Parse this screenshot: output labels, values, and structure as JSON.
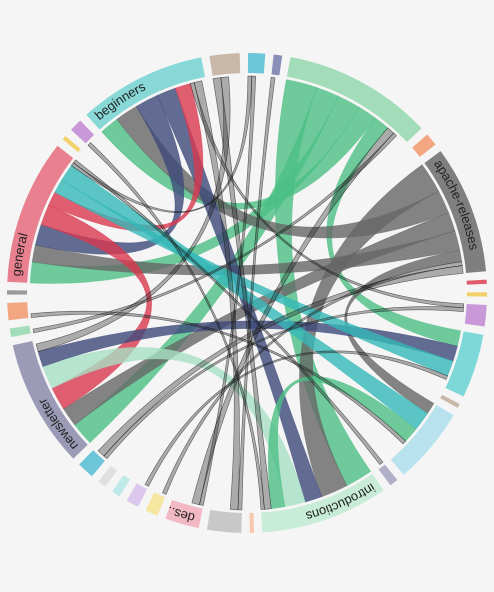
{
  "chart_data": {
    "type": "chord",
    "groups": [
      {
        "name": null,
        "color": "#c9b8a8",
        "value": 7
      },
      {
        "name": null,
        "color": "#6cc5d9",
        "value": 4
      },
      {
        "name": null,
        "color": "#8a8fb8",
        "value": 2
      },
      {
        "name": null,
        "color": "#a2dcb9",
        "value": 35
      },
      {
        "name": null,
        "color": "#f4a582",
        "value": 3
      },
      {
        "name": "apache-releases",
        "color": "#7f7f7f",
        "value": 30
      },
      {
        "name": null,
        "color": "#e05c6c",
        "value": 1
      },
      {
        "name": null,
        "color": "#f2d16b",
        "value": 1
      },
      {
        "name": null,
        "color": "#c898d8",
        "value": 5
      },
      {
        "name": null,
        "color": "#7fd8d8",
        "value": 15
      },
      {
        "name": null,
        "color": "#c9b8a8",
        "value": 1
      },
      {
        "name": null,
        "color": "#b8e3ee",
        "value": 18
      },
      {
        "name": null,
        "color": "#b0b0c8",
        "value": 2
      },
      {
        "name": "introductions",
        "color": "#c8ecd8",
        "value": 30
      },
      {
        "name": null,
        "color": "#f7c7b0",
        "value": 1
      },
      {
        "name": null,
        "color": "#c8c8c8",
        "value": 8
      },
      {
        "name": "des...",
        "color": "#f2b8c4",
        "value": 8
      },
      {
        "name": null,
        "color": "#f6e7a0",
        "value": 3
      },
      {
        "name": null,
        "color": "#dcc8ec",
        "value": 3
      },
      {
        "name": null,
        "color": "#bfe8e8",
        "value": 2
      },
      {
        "name": null,
        "color": "#e0e0e0",
        "value": 2
      },
      {
        "name": null,
        "color": "#6cc5d9",
        "value": 4
      },
      {
        "name": "newsletter",
        "color": "#9b9bb8",
        "value": 30
      },
      {
        "name": null,
        "color": "#a2dcb9",
        "value": 2
      },
      {
        "name": null,
        "color": "#f4a582",
        "value": 4
      },
      {
        "name": null,
        "color": "#999999",
        "value": 1
      },
      {
        "name": "general",
        "color": "#e8808f",
        "value": 34
      },
      {
        "name": null,
        "color": "#f2d16b",
        "value": 1
      },
      {
        "name": null,
        "color": "#c898d8",
        "value": 3
      },
      {
        "name": "beginners",
        "color": "#88d8d8",
        "value": 30
      }
    ],
    "chords": [
      {
        "source": 3,
        "target": 13,
        "value": 8,
        "color": "#4cbf84"
      },
      {
        "source": 3,
        "target": 22,
        "value": 6,
        "color": "#4cbf84"
      },
      {
        "source": 3,
        "target": 26,
        "value": 6,
        "color": "#4cbf84"
      },
      {
        "source": 3,
        "target": 29,
        "value": 5,
        "color": "#4cbf84"
      },
      {
        "source": 3,
        "target": 9,
        "value": 4,
        "color": "#4cbf84"
      },
      {
        "source": 5,
        "target": 13,
        "value": 8,
        "color": "#666666"
      },
      {
        "source": 5,
        "target": 29,
        "value": 6,
        "color": "#666666"
      },
      {
        "source": 5,
        "target": 22,
        "value": 5,
        "color": "#666666"
      },
      {
        "source": 5,
        "target": 26,
        "value": 5,
        "color": "#666666"
      },
      {
        "source": 5,
        "target": 11,
        "value": 3,
        "color": "#666666"
      },
      {
        "source": 29,
        "target": 26,
        "value": 6,
        "color": "#3d4a7a"
      },
      {
        "source": 29,
        "target": 13,
        "value": 5,
        "color": "#3d4a7a"
      },
      {
        "source": 26,
        "target": 22,
        "value": 6,
        "color": "#d9384f"
      },
      {
        "source": 26,
        "target": 29,
        "value": 4,
        "color": "#d9384f"
      },
      {
        "source": 22,
        "target": 13,
        "value": 6,
        "color": "#a8e0c4"
      },
      {
        "source": 22,
        "target": 9,
        "value": 4,
        "color": "#3d4a7a"
      },
      {
        "source": 9,
        "target": 26,
        "value": 4,
        "color": "#35b8b8"
      },
      {
        "source": 11,
        "target": 26,
        "value": 5,
        "color": "#35b8b8"
      },
      {
        "source": 11,
        "target": 13,
        "value": 4,
        "color": "#4cbf84"
      },
      {
        "source": 0,
        "target": 13,
        "value": 2,
        "color": "#222222"
      },
      {
        "source": 0,
        "target": 22,
        "value": 2,
        "color": "#222222"
      },
      {
        "source": 1,
        "target": 26,
        "value": 1,
        "color": "#222222"
      },
      {
        "source": 1,
        "target": 16,
        "value": 1,
        "color": "#222222"
      },
      {
        "source": 2,
        "target": 15,
        "value": 1,
        "color": "#222222"
      },
      {
        "source": 8,
        "target": 29,
        "value": 1,
        "color": "#222222"
      },
      {
        "source": 8,
        "target": 21,
        "value": 1,
        "color": "#222222"
      },
      {
        "source": 15,
        "target": 29,
        "value": 2,
        "color": "#222222"
      },
      {
        "source": 16,
        "target": 3,
        "value": 2,
        "color": "#222222"
      },
      {
        "source": 17,
        "target": 5,
        "value": 1,
        "color": "#222222"
      },
      {
        "source": 18,
        "target": 9,
        "value": 1,
        "color": "#222222"
      },
      {
        "source": 21,
        "target": 5,
        "value": 2,
        "color": "#222222"
      },
      {
        "source": 24,
        "target": 11,
        "value": 1,
        "color": "#222222"
      },
      {
        "source": 28,
        "target": 13,
        "value": 1,
        "color": "#222222"
      },
      {
        "source": 12,
        "target": 26,
        "value": 1,
        "color": "#222222"
      },
      {
        "source": 23,
        "target": 3,
        "value": 1,
        "color": "#222222"
      }
    ]
  }
}
